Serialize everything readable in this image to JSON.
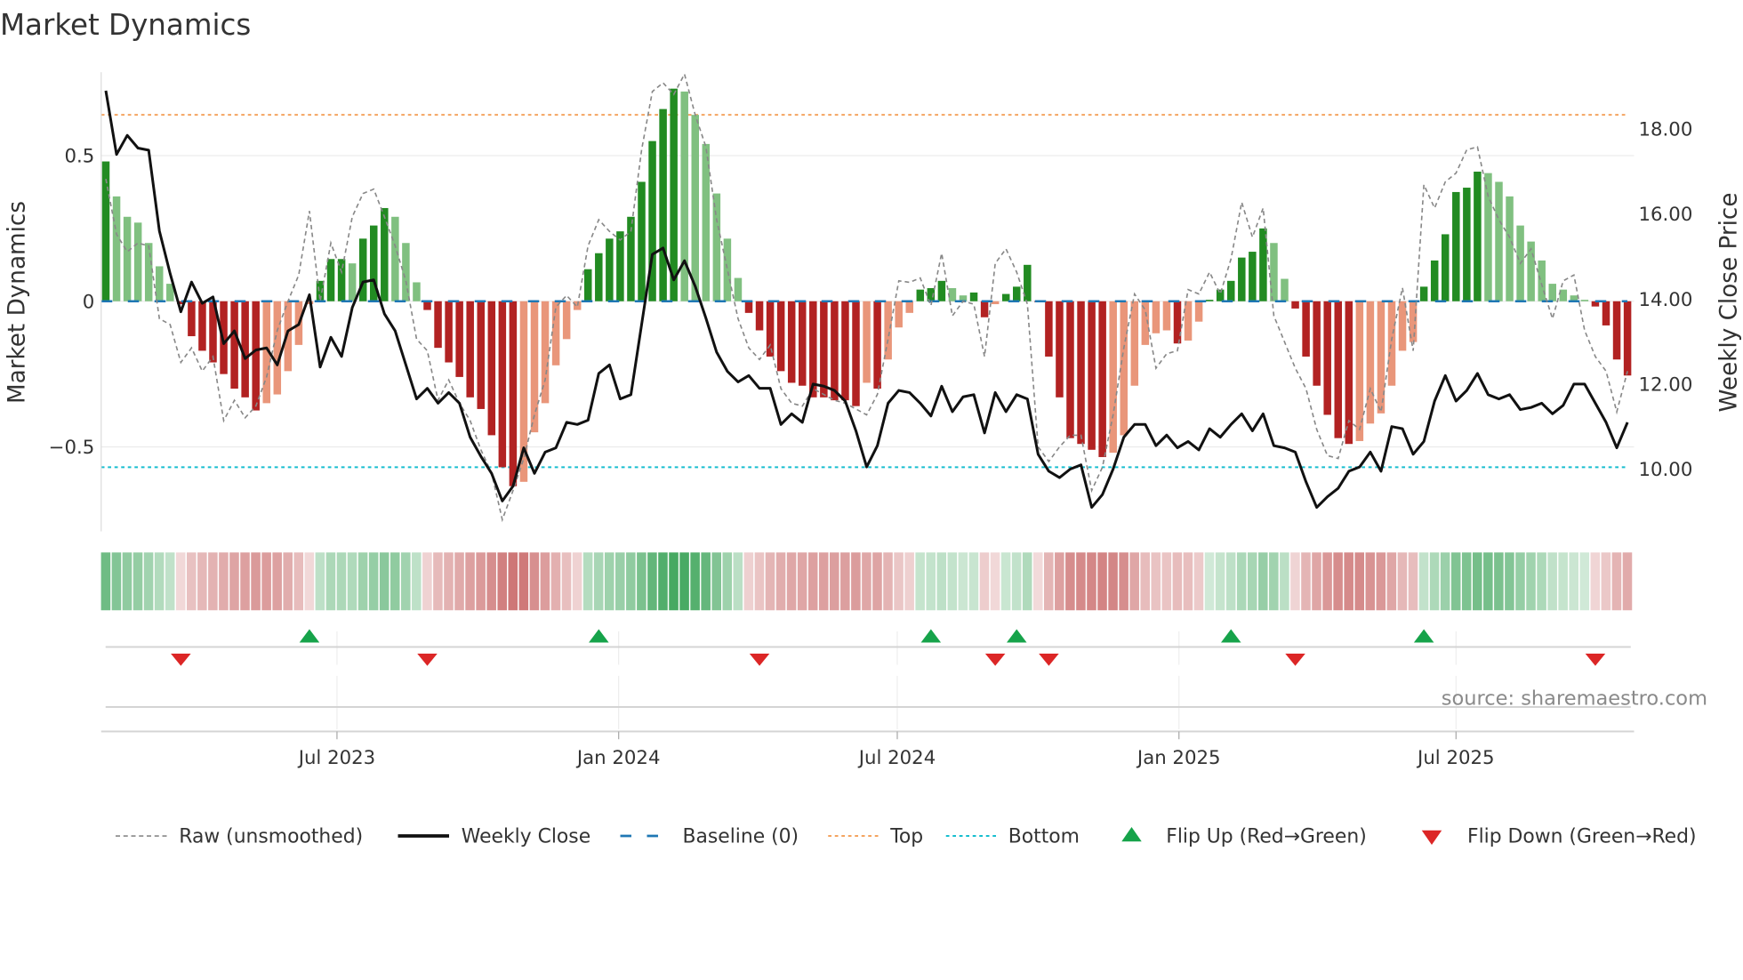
{
  "chart_data": {
    "type": "bar",
    "title": "Market Dynamics",
    "ylabel": "Market Dynamics",
    "y2label": "Weekly Close Price",
    "start_date": "2023-01-31",
    "frequency": "weekly",
    "ylim": [
      -0.82,
      0.79
    ],
    "y_ticks": [
      {
        "v": 0.5,
        "label": "0.5"
      },
      {
        "v": 0,
        "label": "0"
      },
      {
        "v": -0.5,
        "label": "−0.5"
      }
    ],
    "y2lim": [
      8.43,
      19.0
    ],
    "y2_ticks": [
      {
        "v": 18,
        "label": "18.00"
      },
      {
        "v": 16,
        "label": "16.00"
      },
      {
        "v": 14,
        "label": "14.00"
      },
      {
        "v": 12,
        "label": "12.00"
      },
      {
        "v": 10,
        "label": "10.00"
      }
    ],
    "x_ticks": [
      {
        "date": "2023-07-01",
        "label": "Jul 2023"
      },
      {
        "date": "2024-01-01",
        "label": "Jan 2024"
      },
      {
        "date": "2024-07-01",
        "label": "Jul 2024"
      },
      {
        "date": "2025-01-01",
        "label": "Jan 2025"
      },
      {
        "date": "2025-07-01",
        "label": "Jul 2025"
      }
    ],
    "top_level": 0.64,
    "bottom_level": -0.57,
    "baseline": 0,
    "momentum": [
      0.48,
      0.36,
      0.29,
      0.27,
      0.2,
      0.12,
      0.06,
      -0.01,
      -0.12,
      -0.17,
      -0.21,
      -0.25,
      -0.3,
      -0.33,
      -0.375,
      -0.35,
      -0.32,
      -0.24,
      -0.15,
      -0.01,
      0.07,
      0.145,
      0.145,
      0.13,
      0.215,
      0.26,
      0.32,
      0.29,
      0.2,
      0.065,
      -0.03,
      -0.16,
      -0.21,
      -0.26,
      -0.33,
      -0.37,
      -0.46,
      -0.57,
      -0.635,
      -0.62,
      -0.45,
      -0.35,
      -0.22,
      -0.13,
      -0.03,
      0.11,
      0.165,
      0.215,
      0.24,
      0.29,
      0.41,
      0.55,
      0.66,
      0.73,
      0.72,
      0.64,
      0.54,
      0.37,
      0.215,
      0.08,
      -0.04,
      -0.1,
      -0.19,
      -0.24,
      -0.28,
      -0.29,
      -0.33,
      -0.33,
      -0.34,
      -0.34,
      -0.36,
      -0.28,
      -0.3,
      -0.2,
      -0.09,
      -0.04,
      0.04,
      0.045,
      0.07,
      0.045,
      0.02,
      0.03,
      -0.055,
      -0.01,
      0.025,
      0.05,
      0.125,
      -0.003,
      -0.19,
      -0.33,
      -0.47,
      -0.49,
      -0.51,
      -0.535,
      -0.52,
      -0.46,
      -0.29,
      -0.15,
      -0.11,
      -0.1,
      -0.145,
      -0.135,
      -0.07,
      0.005,
      0.04,
      0.07,
      0.15,
      0.17,
      0.25,
      0.2,
      0.077,
      -0.025,
      -0.19,
      -0.29,
      -0.39,
      -0.47,
      -0.49,
      -0.48,
      -0.42,
      -0.385,
      -0.29,
      -0.17,
      -0.14,
      0.05,
      0.14,
      0.23,
      0.375,
      0.39,
      0.445,
      0.44,
      0.41,
      0.36,
      0.26,
      0.205,
      0.14,
      0.06,
      0.04,
      0.02,
      0.005,
      -0.018,
      -0.083,
      -0.2,
      -0.255
    ],
    "raw": [
      0.42,
      0.23,
      0.17,
      0.2,
      0.19,
      -0.06,
      -0.08,
      -0.21,
      -0.16,
      -0.24,
      -0.19,
      -0.41,
      -0.34,
      -0.4,
      -0.36,
      -0.26,
      -0.1,
      0.0,
      0.09,
      0.31,
      0.0,
      0.2,
      0.1,
      0.29,
      0.37,
      0.385,
      0.29,
      0.19,
      0.07,
      -0.13,
      -0.17,
      -0.34,
      -0.27,
      -0.35,
      -0.41,
      -0.51,
      -0.59,
      -0.75,
      -0.65,
      -0.54,
      -0.39,
      -0.27,
      -0.02,
      0.02,
      -0.02,
      0.19,
      0.28,
      0.24,
      0.21,
      0.24,
      0.52,
      0.72,
      0.75,
      0.71,
      0.78,
      0.64,
      0.53,
      0.28,
      0.11,
      -0.06,
      -0.16,
      -0.2,
      -0.15,
      -0.3,
      -0.35,
      -0.36,
      -0.3,
      -0.32,
      -0.34,
      -0.35,
      -0.37,
      -0.39,
      -0.32,
      -0.13,
      0.07,
      0.065,
      0.08,
      -0.015,
      0.165,
      -0.05,
      0.0,
      -0.01,
      -0.19,
      0.13,
      0.18,
      0.1,
      -0.01,
      -0.5,
      -0.55,
      -0.5,
      -0.46,
      -0.46,
      -0.65,
      -0.57,
      -0.39,
      -0.16,
      0.025,
      -0.03,
      -0.23,
      -0.18,
      -0.17,
      0.04,
      0.025,
      0.1,
      0.025,
      0.145,
      0.34,
      0.22,
      0.32,
      -0.05,
      -0.14,
      -0.23,
      -0.3,
      -0.44,
      -0.53,
      -0.54,
      -0.41,
      -0.44,
      -0.3,
      -0.38,
      -0.13,
      0.046,
      -0.17,
      0.4,
      0.32,
      0.41,
      0.44,
      0.52,
      0.53,
      0.36,
      0.28,
      0.22,
      0.13,
      0.18,
      0.057,
      -0.06,
      0.07,
      0.09,
      -0.1,
      -0.19,
      -0.24,
      -0.38,
      -0.24
    ],
    "close": [
      18.9,
      17.4,
      17.85,
      17.55,
      17.5,
      15.6,
      14.6,
      13.7,
      14.4,
      13.9,
      14.05,
      12.95,
      13.25,
      12.6,
      12.8,
      12.85,
      12.45,
      13.25,
      13.4,
      14.1,
      12.4,
      13.1,
      12.65,
      13.8,
      14.4,
      14.45,
      13.65,
      13.25,
      12.45,
      11.65,
      11.9,
      11.55,
      11.8,
      11.55,
      10.75,
      10.3,
      9.9,
      9.25,
      9.6,
      10.5,
      9.9,
      10.4,
      10.5,
      11.1,
      11.05,
      11.15,
      12.25,
      12.45,
      11.65,
      11.75,
      13.4,
      15.05,
      15.2,
      14.45,
      14.9,
      14.3,
      13.55,
      12.75,
      12.3,
      12.05,
      12.2,
      11.9,
      11.9,
      11.05,
      11.3,
      11.1,
      12.0,
      11.95,
      11.85,
      11.6,
      10.9,
      10.05,
      10.55,
      11.55,
      11.85,
      11.8,
      11.55,
      11.25,
      11.95,
      11.35,
      11.7,
      11.75,
      10.85,
      11.8,
      11.35,
      11.75,
      11.65,
      10.35,
      9.95,
      9.8,
      10.0,
      10.1,
      9.1,
      9.4,
      10.0,
      10.75,
      11.05,
      11.05,
      10.55,
      10.8,
      10.5,
      10.65,
      10.45,
      10.95,
      10.75,
      11.05,
      11.3,
      10.9,
      11.3,
      10.55,
      10.5,
      10.4,
      9.7,
      9.1,
      9.35,
      9.55,
      9.95,
      10.05,
      10.4,
      9.95,
      11.0,
      10.95,
      10.35,
      10.65,
      11.6,
      12.2,
      11.6,
      11.85,
      12.25,
      11.75,
      11.65,
      11.75,
      11.4,
      11.45,
      11.55,
      11.3,
      11.5,
      12.0,
      12.0,
      11.55,
      11.1,
      10.5,
      11.1
    ],
    "flip_up_weeks": [
      19,
      46,
      77,
      85,
      105,
      123
    ],
    "flip_down_weeks": [
      7,
      30,
      61,
      83,
      88,
      111,
      139
    ],
    "colors": {
      "strong_up": "#228b22",
      "weak_up": "#80c080",
      "strong_down": "#b22222",
      "weak_down": "#e9967a",
      "close": "#111111",
      "raw": "#888888",
      "baseline": "#1f77b4",
      "top": "#f4a460",
      "bottom": "#17becf",
      "flip_up": "#16a34a",
      "flip_down": "#dc2626"
    },
    "legend": {
      "placement": "bottom",
      "items": [
        {
          "key": "raw",
          "label": "Raw (unsmoothed)"
        },
        {
          "key": "close",
          "label": "Weekly Close"
        },
        {
          "key": "baseline",
          "label": "Baseline (0)"
        },
        {
          "key": "top",
          "label": "Top"
        },
        {
          "key": "bottom",
          "label": "Bottom"
        },
        {
          "key": "flip_up",
          "label": "Flip Up (Red→Green)"
        },
        {
          "key": "flip_down",
          "label": "Flip Down (Green→Red)"
        }
      ]
    },
    "source": "source: sharemaestro.com"
  }
}
